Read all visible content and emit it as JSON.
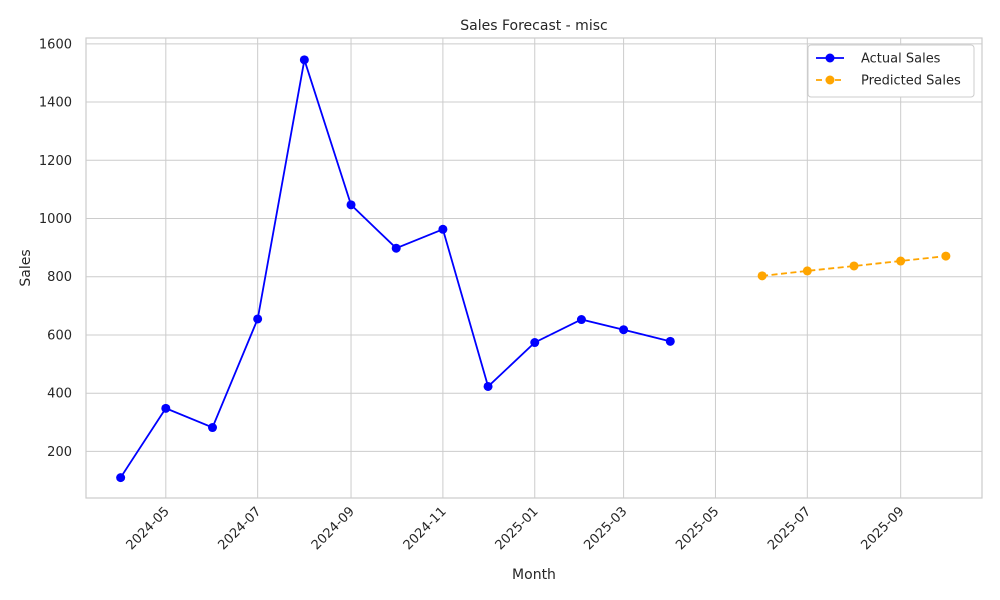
{
  "chart_data": {
    "type": "line",
    "title": "Sales Forecast - misc",
    "xlabel": "Month",
    "ylabel": "Sales",
    "xlim": [
      "2024-03-09",
      "2025-10-25"
    ],
    "ylim": [
      40,
      1620
    ],
    "x_ticks": [
      "2024-05",
      "2024-07",
      "2024-09",
      "2024-11",
      "2025-01",
      "2025-03",
      "2025-05",
      "2025-07",
      "2025-09"
    ],
    "y_ticks": [
      200,
      400,
      600,
      800,
      1000,
      1200,
      1400,
      1600
    ],
    "grid": true,
    "legend_position": "top-right",
    "series": [
      {
        "name": "Actual Sales",
        "color": "#0000ff",
        "line_style": "solid",
        "marker": "circle",
        "points": [
          {
            "x": "2024-04-01",
            "y": 110
          },
          {
            "x": "2024-05-01",
            "y": 348
          },
          {
            "x": "2024-06-01",
            "y": 282
          },
          {
            "x": "2024-07-01",
            "y": 655
          },
          {
            "x": "2024-08-01",
            "y": 1545
          },
          {
            "x": "2024-09-01",
            "y": 1047
          },
          {
            "x": "2024-10-01",
            "y": 898
          },
          {
            "x": "2024-11-01",
            "y": 963
          },
          {
            "x": "2024-12-01",
            "y": 423
          },
          {
            "x": "2025-01-01",
            "y": 574
          },
          {
            "x": "2025-02-01",
            "y": 653
          },
          {
            "x": "2025-03-01",
            "y": 618
          },
          {
            "x": "2025-04-01",
            "y": 578
          }
        ]
      },
      {
        "name": "Predicted Sales",
        "color": "#ffa500",
        "line_style": "dashed",
        "marker": "circle",
        "points": [
          {
            "x": "2025-06-01",
            "y": 803
          },
          {
            "x": "2025-07-01",
            "y": 820
          },
          {
            "x": "2025-08-01",
            "y": 837
          },
          {
            "x": "2025-09-01",
            "y": 854
          },
          {
            "x": "2025-10-01",
            "y": 871
          }
        ]
      }
    ]
  }
}
